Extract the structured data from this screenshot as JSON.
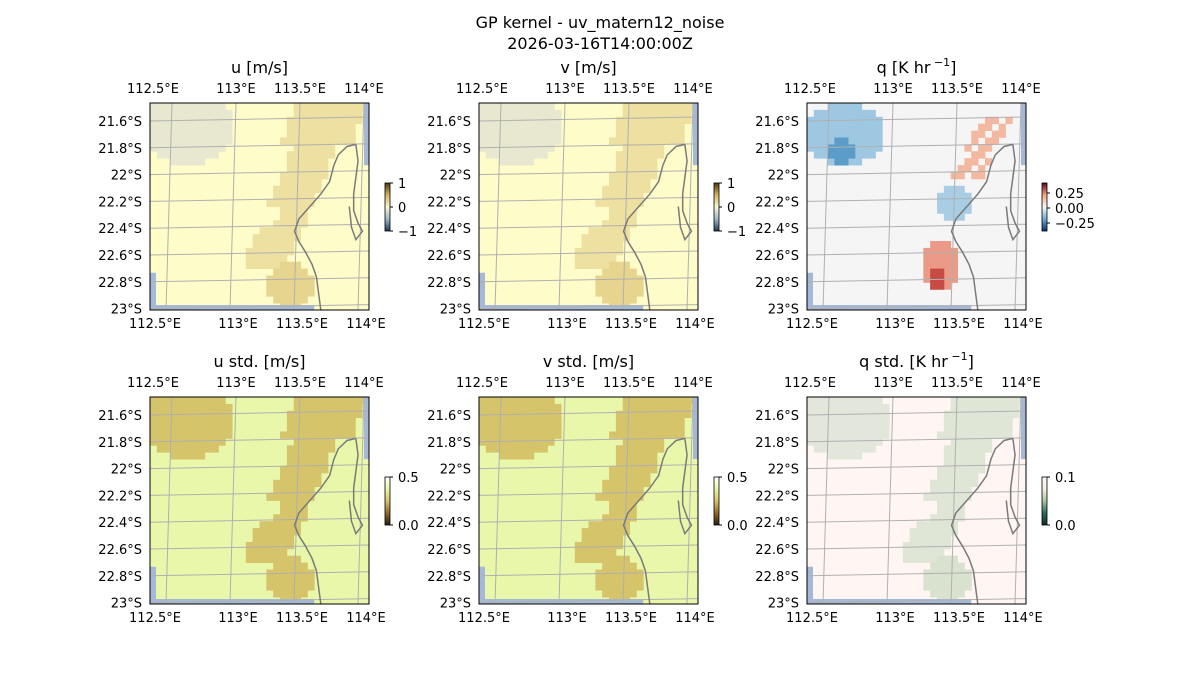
{
  "figure": {
    "title_line1": "GP kernel - uv_matern12_noise",
    "title_line2": "2026-03-16T14:00:00Z"
  },
  "chart_data": [
    {
      "type": "heatmap",
      "title": "u [m/s]",
      "xticks": [
        "112.5°E",
        "113°E",
        "113.5°E",
        "114°E"
      ],
      "yticks": [
        "21.6°S",
        "21.8°S",
        "22°S",
        "22.2°S",
        "22.4°S",
        "22.6°S",
        "22.8°S",
        "23°S"
      ],
      "colorbar": {
        "ticks": [
          "1",
          "0",
          "−1"
        ],
        "range": [
          -1,
          1
        ],
        "colors": [
          "#1f3a55",
          "#9fb8c8",
          "#f7f6d2",
          "#d4b461",
          "#4a3b10"
        ]
      },
      "base_color": "#fefcc8",
      "patches": [
        {
          "region": "NW",
          "color": "#e8e8d0"
        },
        {
          "region": "coast-band",
          "color": "#ede0a0"
        },
        {
          "region": "south-coast",
          "color": "#e7d58f"
        }
      ],
      "grid": true
    },
    {
      "type": "heatmap",
      "title": "v [m/s]",
      "xticks": [
        "112.5°E",
        "113°E",
        "113.5°E",
        "114°E"
      ],
      "yticks": [
        "21.6°S",
        "21.8°S",
        "22°S",
        "22.2°S",
        "22.4°S",
        "22.6°S",
        "22.8°S",
        "23°S"
      ],
      "colorbar": {
        "ticks": [
          "1",
          "0",
          "−1"
        ],
        "range": [
          -1,
          1
        ],
        "colors": [
          "#1f3a55",
          "#9fb8c8",
          "#f7f6d2",
          "#d4b461",
          "#4a3b10"
        ]
      },
      "base_color": "#fefcc8",
      "patches": [
        {
          "region": "NW",
          "color": "#e8e8d0"
        },
        {
          "region": "coast-band",
          "color": "#ede0a0"
        },
        {
          "region": "south-coast",
          "color": "#e7d58f"
        }
      ],
      "grid": true
    },
    {
      "type": "heatmap",
      "title": "q [K hr",
      "title_sup": "−1",
      "title_close": "]",
      "xticks": [
        "112.5°E",
        "113°E",
        "113.5°E",
        "114°E"
      ],
      "yticks": [
        "21.6°S",
        "21.8°S",
        "22°S",
        "22.2°S",
        "22.4°S",
        "22.6°S",
        "22.8°S",
        "23°S"
      ],
      "colorbar": {
        "ticks": [
          "0.25",
          "0.00",
          "−0.25"
        ],
        "range": [
          -0.35,
          0.35
        ],
        "colors": [
          "#08306b",
          "#6baed6",
          "#f7f7f7",
          "#f4a582",
          "#67001f"
        ]
      },
      "base_color": "#f5f5f5",
      "patches": [
        {
          "region": "NW-blue",
          "color": "#9ec8e2"
        },
        {
          "region": "NW-dark-blue",
          "color": "#5b9cc9"
        },
        {
          "region": "NE-red",
          "color": "#f2b8a0"
        },
        {
          "region": "mid-blue",
          "color": "#a9cde4"
        },
        {
          "region": "south-red",
          "color": "#ea9a86"
        },
        {
          "region": "south-dark-red",
          "color": "#c64b45"
        }
      ],
      "grid": true
    },
    {
      "type": "heatmap",
      "title": "u std. [m/s]",
      "xticks": [
        "112.5°E",
        "113°E",
        "113.5°E",
        "114°E"
      ],
      "yticks": [
        "21.6°S",
        "21.8°S",
        "22°S",
        "22.2°S",
        "22.4°S",
        "22.6°S",
        "22.8°S",
        "23°S"
      ],
      "colorbar": {
        "ticks": [
          "0.5",
          "0.0"
        ],
        "range": [
          0,
          0.5
        ],
        "colors": [
          "#2b1d0e",
          "#8f6b2c",
          "#d6c46a",
          "#eaf5aa",
          "#ffffff"
        ]
      },
      "base_color": "#e9f7aa",
      "patches": [
        {
          "region": "NW",
          "color": "#d6c46a"
        },
        {
          "region": "coast-band",
          "color": "#d6c46a"
        },
        {
          "region": "south-coast",
          "color": "#d6c46a"
        }
      ],
      "grid": true
    },
    {
      "type": "heatmap",
      "title": "v std. [m/s]",
      "xticks": [
        "112.5°E",
        "113°E",
        "113.5°E",
        "114°E"
      ],
      "yticks": [
        "21.6°S",
        "21.8°S",
        "22°S",
        "22.2°S",
        "22.4°S",
        "22.6°S",
        "22.8°S",
        "23°S"
      ],
      "colorbar": {
        "ticks": [
          "0.5",
          "0.0"
        ],
        "range": [
          0,
          0.5
        ],
        "colors": [
          "#2b1d0e",
          "#8f6b2c",
          "#d6c46a",
          "#eaf5aa",
          "#ffffff"
        ]
      },
      "base_color": "#e9f7aa",
      "patches": [
        {
          "region": "NW",
          "color": "#d6c46a"
        },
        {
          "region": "coast-band",
          "color": "#d6c46a"
        },
        {
          "region": "south-coast",
          "color": "#d6c46a"
        }
      ],
      "grid": true
    },
    {
      "type": "heatmap",
      "title": "q std. [K hr",
      "title_sup": "−1",
      "title_close": "]",
      "xticks": [
        "112.5°E",
        "113°E",
        "113.5°E",
        "114°E"
      ],
      "yticks": [
        "21.6°S",
        "21.8°S",
        "22°S",
        "22.2°S",
        "22.4°S",
        "22.6°S",
        "22.8°S",
        "23°S"
      ],
      "colorbar": {
        "ticks": [
          "0.1",
          "0.0"
        ],
        "range": [
          0,
          0.1
        ],
        "colors": [
          "#0f2a2a",
          "#2e6b5a",
          "#a9c4a0",
          "#f3f0e6",
          "#fff5f0"
        ]
      },
      "base_color": "#fff5f2",
      "patches": [
        {
          "region": "NW",
          "color": "#e3e6da"
        },
        {
          "region": "coast-band",
          "color": "#dfe6d6"
        },
        {
          "region": "south-coast",
          "color": "#d8e2cf"
        }
      ],
      "grid": true
    }
  ]
}
